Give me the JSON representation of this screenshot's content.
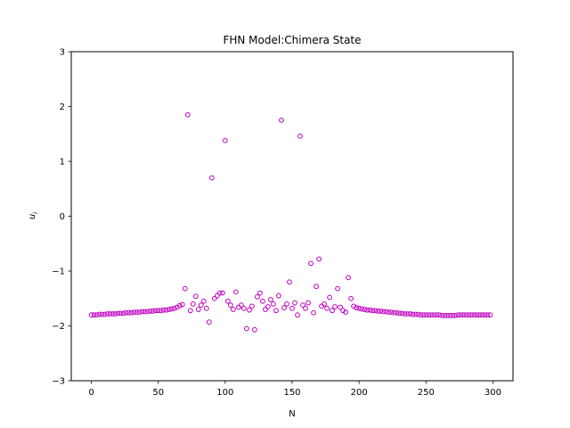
{
  "chart_data": {
    "type": "scatter",
    "title": "FHN Model:Chimera State",
    "xlabel": "N",
    "ylabel_main": "u",
    "ylabel_sub": "i",
    "xlim": [
      -15,
      315
    ],
    "ylim": [
      -3,
      3
    ],
    "xticks": [
      0,
      50,
      100,
      150,
      200,
      250,
      300
    ],
    "yticks": [
      -3,
      -2,
      -1,
      0,
      1,
      2,
      3
    ],
    "marker_color": "#bf00bf",
    "marker": "open-circle",
    "grid": false,
    "legend": "none",
    "series": [
      {
        "x": [
          0,
          2,
          4,
          6,
          8,
          10,
          12,
          14,
          16,
          18,
          20,
          22,
          24,
          26,
          28,
          30,
          32,
          34,
          36,
          38,
          40,
          42,
          44,
          46,
          48,
          50,
          52,
          54,
          56,
          58,
          60,
          62,
          64,
          66,
          68,
          70,
          72,
          74,
          76,
          78,
          80,
          82,
          84,
          86,
          88,
          90,
          92,
          94,
          96,
          98,
          100,
          102,
          104,
          106,
          108,
          110,
          112,
          114,
          116,
          118,
          120,
          122,
          124,
          126,
          128,
          130,
          132,
          134,
          136,
          138,
          140,
          142,
          144,
          146,
          148,
          150,
          152,
          154,
          156,
          158,
          160,
          162,
          164,
          166,
          168,
          170,
          172,
          174,
          176,
          178,
          180,
          182,
          184,
          186,
          188,
          190,
          192,
          194,
          196,
          198,
          200,
          202,
          204,
          206,
          208,
          210,
          212,
          214,
          216,
          218,
          220,
          222,
          224,
          226,
          228,
          230,
          232,
          234,
          236,
          238,
          240,
          242,
          244,
          246,
          248,
          250,
          252,
          254,
          256,
          258,
          260,
          262,
          264,
          266,
          268,
          270,
          272,
          274,
          276,
          278,
          280,
          282,
          284,
          286,
          288,
          290,
          292,
          294,
          296,
          298
        ],
        "y": [
          -1.8,
          -1.8,
          -1.8,
          -1.79,
          -1.79,
          -1.79,
          -1.78,
          -1.78,
          -1.78,
          -1.78,
          -1.77,
          -1.77,
          -1.77,
          -1.76,
          -1.76,
          -1.76,
          -1.75,
          -1.75,
          -1.75,
          -1.74,
          -1.74,
          -1.74,
          -1.73,
          -1.73,
          -1.72,
          -1.72,
          -1.72,
          -1.71,
          -1.71,
          -1.7,
          -1.69,
          -1.68,
          -1.66,
          -1.63,
          -1.61,
          -1.32,
          1.85,
          -1.72,
          -1.6,
          -1.46,
          -1.7,
          -1.62,
          -1.55,
          -1.68,
          -1.93,
          0.7,
          -1.5,
          -1.45,
          -1.4,
          -1.4,
          1.38,
          -1.55,
          -1.62,
          -1.7,
          -1.38,
          -1.66,
          -1.62,
          -1.68,
          -2.05,
          -1.71,
          -1.64,
          -2.07,
          -1.47,
          -1.4,
          -1.55,
          -1.7,
          -1.65,
          -1.52,
          -1.6,
          -1.72,
          -1.45,
          1.75,
          -1.67,
          -1.6,
          -1.2,
          -1.68,
          -1.58,
          -1.8,
          1.46,
          -1.62,
          -1.68,
          -1.58,
          -0.86,
          -1.76,
          -1.28,
          -0.78,
          -1.64,
          -1.6,
          -1.68,
          -1.48,
          -1.72,
          -1.65,
          -1.32,
          -1.66,
          -1.72,
          -1.75,
          -1.12,
          -1.5,
          -1.64,
          -1.67,
          -1.68,
          -1.69,
          -1.7,
          -1.71,
          -1.71,
          -1.72,
          -1.72,
          -1.73,
          -1.73,
          -1.74,
          -1.74,
          -1.75,
          -1.75,
          -1.76,
          -1.76,
          -1.77,
          -1.77,
          -1.78,
          -1.78,
          -1.78,
          -1.79,
          -1.79,
          -1.79,
          -1.8,
          -1.8,
          -1.8,
          -1.8,
          -1.8,
          -1.8,
          -1.8,
          -1.8,
          -1.81,
          -1.81,
          -1.81,
          -1.81,
          -1.81,
          -1.81,
          -1.8,
          -1.8,
          -1.8,
          -1.8,
          -1.8,
          -1.8,
          -1.8,
          -1.8,
          -1.8,
          -1.8,
          -1.8,
          -1.8,
          -1.8
        ]
      }
    ]
  }
}
